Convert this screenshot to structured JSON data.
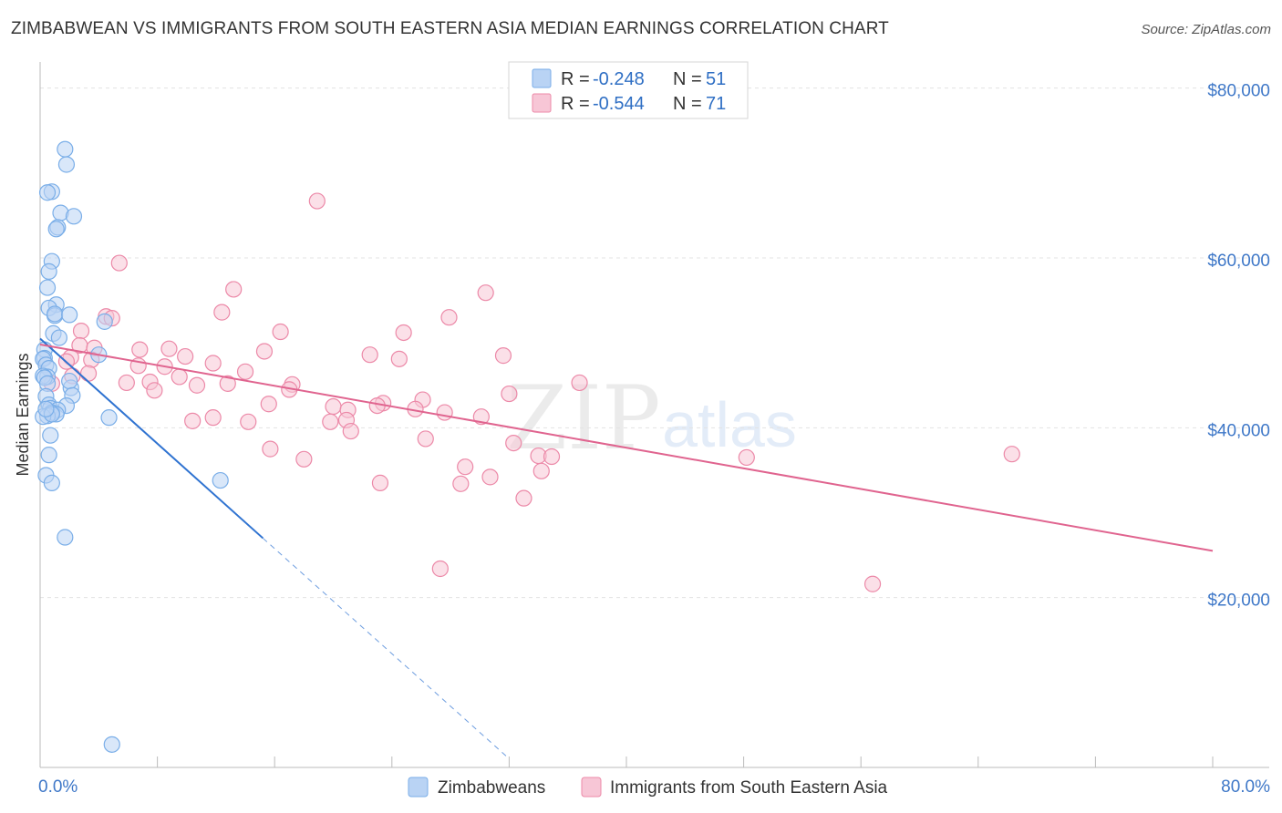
{
  "title": "ZIMBABWEAN VS IMMIGRANTS FROM SOUTH EASTERN ASIA MEDIAN EARNINGS CORRELATION CHART",
  "source": "Source: ZipAtlas.com",
  "watermark": {
    "zip": "ZIP",
    "atlas": "atlas"
  },
  "colors": {
    "blue": "#7aaee8",
    "blue_fill": "#b9d3f4",
    "blue_line": "#2f73d1",
    "pink": "#ec89a8",
    "pink_fill": "#f7c6d6",
    "pink_line": "#e0648f",
    "tick_label": "#3f78c8"
  },
  "legend": {
    "rows": [
      {
        "r_label": "R =",
        "r_value": "-0.248",
        "n_label": "N =",
        "n_value": "51"
      },
      {
        "r_label": "R =",
        "r_value": "-0.544",
        "n_label": "N =",
        "n_value": "71"
      }
    ]
  },
  "bottom_legend": {
    "series1": "Zimbabweans",
    "series2": "Immigrants from South Eastern Asia"
  },
  "chart_data": {
    "type": "scatter",
    "title": "ZIMBABWEAN VS IMMIGRANTS FROM SOUTH EASTERN ASIA MEDIAN EARNINGS CORRELATION CHART",
    "xlabel": "",
    "ylabel": "Median Earnings",
    "xlim": [
      0,
      80
    ],
    "ylim": [
      0,
      82000
    ],
    "x_tick_labels": [
      "0.0%",
      "80.0%"
    ],
    "y_ticks": [
      20000,
      40000,
      60000,
      80000
    ],
    "y_tick_labels": [
      "$20,000",
      "$40,000",
      "$60,000",
      "$80,000"
    ],
    "grid": true,
    "legend_position": "top-center",
    "series": [
      {
        "name": "Zimbabweans",
        "R": -0.248,
        "N": 51,
        "trend": {
          "x0": 0,
          "y0": 50500,
          "x1": 15.2,
          "y1": 27000,
          "dash_to_x": 32
        },
        "points": [
          [
            1.7,
            72800
          ],
          [
            1.8,
            71000
          ],
          [
            0.8,
            67800
          ],
          [
            0.5,
            67700
          ],
          [
            1.4,
            65300
          ],
          [
            2.3,
            64900
          ],
          [
            1.2,
            63600
          ],
          [
            1.1,
            63400
          ],
          [
            0.8,
            59600
          ],
          [
            0.6,
            58400
          ],
          [
            0.5,
            56500
          ],
          [
            1.1,
            54500
          ],
          [
            0.6,
            54100
          ],
          [
            1.0,
            53200
          ],
          [
            1.0,
            53400
          ],
          [
            2.0,
            53300
          ],
          [
            4.4,
            52500
          ],
          [
            0.9,
            51100
          ],
          [
            1.3,
            50600
          ],
          [
            0.3,
            49200
          ],
          [
            0.3,
            48200
          ],
          [
            0.2,
            48100
          ],
          [
            4.0,
            48600
          ],
          [
            0.4,
            47400
          ],
          [
            0.6,
            47000
          ],
          [
            0.5,
            46000
          ],
          [
            0.2,
            46100
          ],
          [
            0.3,
            45900
          ],
          [
            0.5,
            45200
          ],
          [
            2.1,
            44700
          ],
          [
            2.0,
            45500
          ],
          [
            2.2,
            43800
          ],
          [
            0.4,
            43700
          ],
          [
            0.6,
            42700
          ],
          [
            1.8,
            42600
          ],
          [
            0.7,
            42300
          ],
          [
            1.2,
            42100
          ],
          [
            0.8,
            41800
          ],
          [
            1.1,
            41600
          ],
          [
            0.5,
            41400
          ],
          [
            0.2,
            41300
          ],
          [
            0.8,
            41600
          ],
          [
            4.7,
            41200
          ],
          [
            0.7,
            39100
          ],
          [
            0.6,
            36800
          ],
          [
            0.4,
            34400
          ],
          [
            0.8,
            33500
          ],
          [
            12.3,
            33800
          ],
          [
            1.7,
            27100
          ],
          [
            4.9,
            2700
          ],
          [
            0.4,
            42200
          ]
        ]
      },
      {
        "name": "Immigrants from South Eastern Asia",
        "R": -0.544,
        "N": 71,
        "trend": {
          "x0": 0,
          "y0": 49800,
          "x1": 80,
          "y1": 25500
        },
        "points": [
          [
            18.9,
            66700
          ],
          [
            5.4,
            59400
          ],
          [
            13.2,
            56300
          ],
          [
            30.4,
            55900
          ],
          [
            12.4,
            53600
          ],
          [
            4.5,
            53100
          ],
          [
            27.9,
            53000
          ],
          [
            4.9,
            52900
          ],
          [
            2.8,
            51400
          ],
          [
            16.4,
            51300
          ],
          [
            24.8,
            51200
          ],
          [
            2.7,
            49700
          ],
          [
            3.7,
            49400
          ],
          [
            6.8,
            49200
          ],
          [
            8.8,
            49300
          ],
          [
            15.3,
            49000
          ],
          [
            22.5,
            48600
          ],
          [
            31.6,
            48500
          ],
          [
            2.1,
            48300
          ],
          [
            9.9,
            48400
          ],
          [
            24.5,
            48100
          ],
          [
            1.8,
            47800
          ],
          [
            3.5,
            48000
          ],
          [
            11.8,
            47600
          ],
          [
            6.7,
            47300
          ],
          [
            8.5,
            47200
          ],
          [
            14.0,
            46600
          ],
          [
            3.3,
            46400
          ],
          [
            9.5,
            46000
          ],
          [
            2.2,
            46100
          ],
          [
            0.8,
            45200
          ],
          [
            5.9,
            45300
          ],
          [
            7.5,
            45400
          ],
          [
            10.7,
            45000
          ],
          [
            12.8,
            45200
          ],
          [
            17.2,
            45100
          ],
          [
            36.8,
            45300
          ],
          [
            7.8,
            44400
          ],
          [
            17.0,
            44500
          ],
          [
            32.0,
            44000
          ],
          [
            26.1,
            43300
          ],
          [
            23.4,
            42900
          ],
          [
            15.6,
            42800
          ],
          [
            20.0,
            42500
          ],
          [
            21.0,
            42100
          ],
          [
            25.6,
            42200
          ],
          [
            27.6,
            41800
          ],
          [
            23.0,
            42600
          ],
          [
            30.1,
            41300
          ],
          [
            11.8,
            41200
          ],
          [
            10.4,
            40800
          ],
          [
            14.2,
            40700
          ],
          [
            19.8,
            40700
          ],
          [
            20.9,
            40900
          ],
          [
            21.2,
            39600
          ],
          [
            26.3,
            38700
          ],
          [
            32.3,
            38200
          ],
          [
            15.7,
            37500
          ],
          [
            18.0,
            36300
          ],
          [
            34.0,
            36700
          ],
          [
            34.9,
            36600
          ],
          [
            48.2,
            36500
          ],
          [
            66.3,
            36900
          ],
          [
            29.0,
            35400
          ],
          [
            34.2,
            34900
          ],
          [
            30.7,
            34200
          ],
          [
            23.2,
            33500
          ],
          [
            28.7,
            33400
          ],
          [
            33.0,
            31700
          ],
          [
            27.3,
            23400
          ],
          [
            56.8,
            21600
          ]
        ]
      }
    ]
  }
}
